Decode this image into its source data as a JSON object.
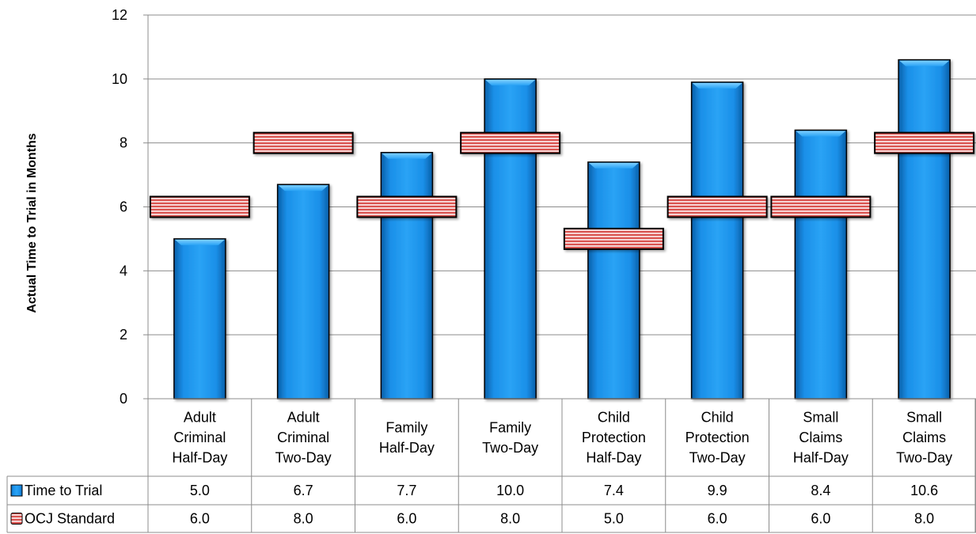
{
  "chart_data": {
    "type": "bar",
    "title": "",
    "ylabel": "Actual Time to Trial in Months",
    "ylim": [
      0,
      12
    ],
    "yticks": [
      0,
      2,
      4,
      6,
      8,
      10,
      12
    ],
    "grid": true,
    "categories": [
      [
        "Adult",
        "Criminal",
        "Half-Day"
      ],
      [
        "Adult",
        "Criminal",
        "Two-Day"
      ],
      [
        "Family",
        "Half-Day"
      ],
      [
        "Family",
        "Two-Day"
      ],
      [
        "Child",
        "Protection",
        "Half-Day"
      ],
      [
        "Child",
        "Protection",
        "Two-Day"
      ],
      [
        "Small",
        "Claims",
        "Half-Day"
      ],
      [
        "Small",
        "Claims",
        "Two-Day"
      ]
    ],
    "series": [
      {
        "name": "Time to Trial",
        "kind": "bar",
        "color": "#1a8fe8",
        "values": [
          5.0,
          6.7,
          7.7,
          10.0,
          7.4,
          9.9,
          8.4,
          10.6
        ],
        "labels": [
          "5.0",
          "6.7",
          "7.7",
          "10.0",
          "7.4",
          "9.9",
          "8.4",
          "10.6"
        ]
      },
      {
        "name": "OCJ Standard",
        "kind": "marker",
        "color": "#d9534f",
        "values": [
          6.0,
          8.0,
          6.0,
          8.0,
          5.0,
          6.0,
          6.0,
          8.0
        ],
        "labels": [
          "6.0",
          "8.0",
          "6.0",
          "8.0",
          "5.0",
          "6.0",
          "6.0",
          "8.0"
        ]
      }
    ],
    "legend": "data-table"
  }
}
